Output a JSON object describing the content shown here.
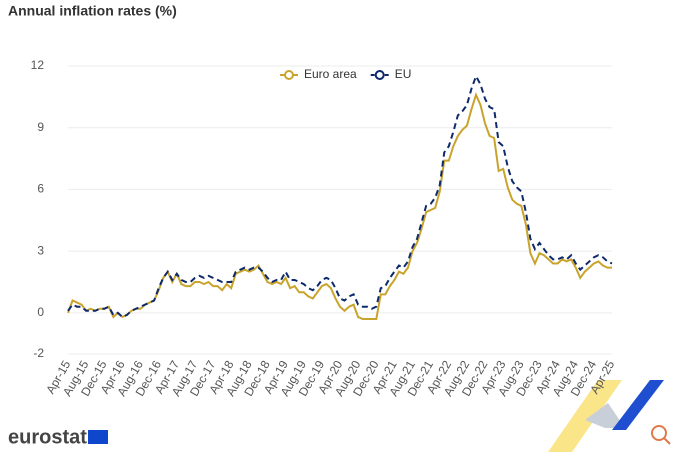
{
  "chart_data": {
    "type": "line",
    "title": "Annual inflation rates (%)",
    "logo": "eurostat",
    "categories": [
      "Apr-15",
      null,
      null,
      null,
      "Aug-15",
      null,
      null,
      null,
      "Dec-15",
      null,
      null,
      null,
      "Apr-16",
      null,
      null,
      null,
      "Aug-16",
      null,
      null,
      null,
      "Dec-16",
      null,
      null,
      null,
      "Apr-17",
      null,
      null,
      null,
      "Aug-17",
      null,
      null,
      null,
      "Dec-17",
      null,
      null,
      null,
      "Apr-18",
      null,
      null,
      null,
      "Aug-18",
      null,
      null,
      null,
      "Dec-18",
      null,
      null,
      null,
      "Apr-19",
      null,
      null,
      null,
      "Aug-19",
      null,
      null,
      null,
      "Dec-19",
      null,
      null,
      null,
      "Apr-20",
      null,
      null,
      null,
      "Aug-20",
      null,
      null,
      null,
      "Dec-20",
      null,
      null,
      null,
      "Apr-21",
      null,
      null,
      null,
      "Aug-21",
      null,
      null,
      null,
      "Dec-21",
      null,
      null,
      null,
      "Apr-22",
      null,
      null,
      null,
      "Aug-22",
      null,
      null,
      null,
      "Dec-22",
      null,
      null,
      null,
      "Apr-23",
      null,
      null,
      null,
      "Aug-23",
      null,
      null,
      null,
      "Dec-23",
      null,
      null,
      null,
      "Apr-24",
      null,
      null,
      null,
      "Aug-24",
      null,
      null,
      null,
      "Dec-24",
      null,
      null,
      null,
      "Apr-25"
    ],
    "series": [
      {
        "name": "Euro area",
        "color": "#c9a42c",
        "dash": false,
        "values": [
          0.0,
          0.6,
          0.5,
          0.4,
          0.1,
          0.2,
          0.1,
          0.2,
          0.2,
          0.3,
          -0.2,
          0.0,
          -0.2,
          -0.1,
          0.1,
          0.2,
          0.2,
          0.4,
          0.5,
          0.6,
          1.1,
          1.7,
          2.0,
          1.5,
          1.9,
          1.4,
          1.3,
          1.3,
          1.5,
          1.5,
          1.4,
          1.5,
          1.3,
          1.3,
          1.1,
          1.4,
          1.2,
          1.9,
          2.0,
          2.1,
          2.0,
          2.1,
          2.3,
          1.9,
          1.5,
          1.4,
          1.5,
          1.4,
          1.7,
          1.2,
          1.3,
          1.0,
          1.0,
          0.8,
          0.7,
          1.0,
          1.3,
          1.4,
          1.2,
          0.7,
          0.3,
          0.1,
          0.3,
          0.4,
          -0.2,
          -0.3,
          -0.3,
          -0.3,
          -0.3,
          0.9,
          0.9,
          1.3,
          1.6,
          2.0,
          1.9,
          2.2,
          3.0,
          3.4,
          4.1,
          4.9,
          5.0,
          5.1,
          5.9,
          7.4,
          7.4,
          8.1,
          8.6,
          8.9,
          9.1,
          9.9,
          10.6,
          10.1,
          9.2,
          8.6,
          8.5,
          6.9,
          7.0,
          6.1,
          5.5,
          5.3,
          5.2,
          4.3,
          2.9,
          2.4,
          2.9,
          2.8,
          2.6,
          2.4,
          2.4,
          2.6,
          2.5,
          2.6,
          2.2,
          1.7,
          2.0,
          2.2,
          2.4,
          2.5,
          2.3,
          2.2,
          2.2
        ]
      },
      {
        "name": "EU",
        "color": "#0e2a6b",
        "dash": true,
        "values": [
          0.1,
          0.4,
          0.3,
          0.3,
          0.1,
          0.1,
          0.1,
          0.2,
          0.2,
          0.3,
          -0.1,
          0.0,
          -0.2,
          -0.1,
          0.1,
          0.2,
          0.3,
          0.4,
          0.5,
          0.6,
          1.2,
          1.7,
          2.0,
          1.6,
          1.9,
          1.6,
          1.5,
          1.5,
          1.7,
          1.8,
          1.7,
          1.8,
          1.7,
          1.6,
          1.5,
          1.5,
          1.5,
          2.0,
          2.1,
          2.2,
          2.1,
          2.2,
          2.2,
          2.0,
          1.7,
          1.5,
          1.6,
          1.6,
          2.0,
          1.6,
          1.6,
          1.5,
          1.4,
          1.2,
          1.1,
          1.3,
          1.6,
          1.7,
          1.6,
          1.2,
          0.7,
          0.6,
          0.8,
          0.9,
          0.4,
          0.3,
          0.3,
          0.2,
          0.3,
          1.2,
          1.3,
          1.7,
          2.0,
          2.3,
          2.2,
          2.5,
          3.2,
          3.6,
          4.4,
          5.2,
          5.3,
          5.6,
          6.2,
          7.8,
          8.1,
          8.8,
          9.6,
          9.8,
          10.1,
          10.9,
          11.5,
          11.1,
          10.4,
          10.0,
          9.9,
          8.3,
          8.1,
          7.1,
          6.4,
          6.1,
          5.9,
          4.9,
          3.6,
          3.1,
          3.4,
          3.1,
          2.8,
          2.6,
          2.6,
          2.7,
          2.6,
          2.8,
          2.4,
          2.1,
          2.3,
          2.5,
          2.7,
          2.8,
          2.7,
          2.5,
          2.4
        ]
      }
    ],
    "ylim": [
      -2,
      12
    ],
    "yticks": [
      -2,
      0,
      3,
      6,
      9,
      12
    ],
    "grid": true,
    "legend": "top"
  }
}
